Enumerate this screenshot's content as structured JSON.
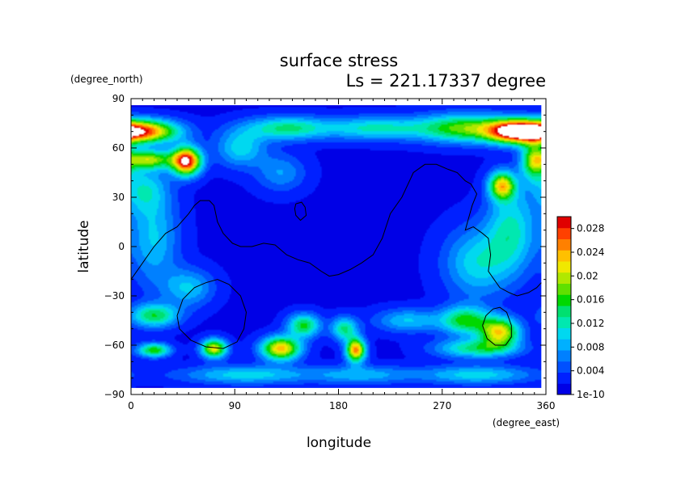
{
  "chart_data": {
    "type": "heatmap",
    "title": "surface stress",
    "subtitle": "Ls = 221.17337 degree",
    "xlabel": "longitude",
    "ylabel": "latitude",
    "x_unit": "(degree_east)",
    "y_unit": "(degree_north)",
    "xlim": [
      0,
      360
    ],
    "ylim": [
      -90,
      90
    ],
    "x_ticks": [
      0,
      90,
      180,
      270,
      360
    ],
    "y_ticks": [
      -90,
      -60,
      -30,
      0,
      30,
      60,
      90
    ],
    "grid": false,
    "data_extent": {
      "lon": [
        0,
        356
      ],
      "lat": [
        -86,
        86
      ]
    },
    "colorbar": {
      "placement": "right",
      "range": [
        0,
        0.03
      ],
      "labels": [
        {
          "value": 0.0,
          "text": "1e-10"
        },
        {
          "value": 0.004,
          "text": "0.004"
        },
        {
          "value": 0.008,
          "text": "0.008"
        },
        {
          "value": 0.012,
          "text": "0.012"
        },
        {
          "value": 0.016,
          "text": "0.016"
        },
        {
          "value": 0.02,
          "text": "0.02"
        },
        {
          "value": 0.024,
          "text": "0.024"
        },
        {
          "value": 0.028,
          "text": "0.028"
        }
      ],
      "colors": [
        "#0000e6",
        "#0020ff",
        "#0050ff",
        "#0080ff",
        "#00b0ff",
        "#00d8f0",
        "#00e8b0",
        "#00e070",
        "#00d800",
        "#60e000",
        "#b0e800",
        "#f0e800",
        "#ffc000",
        "#ff8000",
        "#ff4000",
        "#e00000"
      ]
    },
    "background_value": 0.0015,
    "features": [
      {
        "name": "northern-cap-west",
        "lon": 10,
        "lat": 70,
        "peak": 0.025,
        "sx": 22,
        "sy": 5
      },
      {
        "name": "northern-hotspot",
        "lon": 48,
        "lat": 52,
        "peak": 0.029,
        "sx": 9,
        "sy": 6
      },
      {
        "name": "northern-belt-west",
        "lon": 15,
        "lat": 53,
        "peak": 0.017,
        "sx": 15,
        "sy": 4
      },
      {
        "name": "northern-cap-east",
        "lon": 335,
        "lat": 70,
        "peak": 0.027,
        "sx": 18,
        "sy": 5
      },
      {
        "name": "northern-belt-east",
        "lon": 290,
        "lat": 72,
        "peak": 0.016,
        "sx": 30,
        "sy": 6
      },
      {
        "name": "northern-belt-mid",
        "lon": 135,
        "lat": 72,
        "peak": 0.012,
        "sx": 25,
        "sy": 5
      },
      {
        "name": "northern-belt-center",
        "lon": 210,
        "lat": 72,
        "peak": 0.01,
        "sx": 30,
        "sy": 5
      },
      {
        "name": "northern-belt-far-west",
        "lon": 95,
        "lat": 60,
        "peak": 0.009,
        "sx": 15,
        "sy": 8
      },
      {
        "name": "east-midlatitude",
        "lon": 322,
        "lat": 37,
        "peak": 0.02,
        "sx": 8,
        "sy": 6
      },
      {
        "name": "east-north",
        "lon": 350,
        "lat": 52,
        "peak": 0.016,
        "sx": 8,
        "sy": 8
      },
      {
        "name": "east-tropics",
        "lon": 330,
        "lat": 10,
        "peak": 0.01,
        "sx": 15,
        "sy": 18
      },
      {
        "name": "east-band",
        "lon": 300,
        "lat": -10,
        "peak": 0.009,
        "sx": 20,
        "sy": 15
      },
      {
        "name": "west-tropics",
        "lon": 20,
        "lat": 5,
        "peak": 0.008,
        "sx": 15,
        "sy": 20
      },
      {
        "name": "west-north",
        "lon": 10,
        "lat": 35,
        "peak": 0.008,
        "sx": 15,
        "sy": 10
      },
      {
        "name": "south-west-band",
        "lon": 20,
        "lat": -42,
        "peak": 0.013,
        "sx": 15,
        "sy": 5
      },
      {
        "name": "south-west-small",
        "lon": 20,
        "lat": -63,
        "peak": 0.015,
        "sx": 10,
        "sy": 3
      },
      {
        "name": "south-ring",
        "lon": 72,
        "lat": -62,
        "peak": 0.02,
        "sx": 8,
        "sy": 4
      },
      {
        "name": "south-streak-1",
        "lon": 130,
        "lat": -62,
        "peak": 0.022,
        "sx": 12,
        "sy": 5
      },
      {
        "name": "south-streak-2",
        "lon": 150,
        "lat": -48,
        "peak": 0.014,
        "sx": 10,
        "sy": 5
      },
      {
        "name": "south-hotspot",
        "lon": 195,
        "lat": -63,
        "peak": 0.024,
        "sx": 6,
        "sy": 5
      },
      {
        "name": "south-streak-3",
        "lon": 185,
        "lat": -50,
        "peak": 0.012,
        "sx": 8,
        "sy": 5
      },
      {
        "name": "south-east-hotspot",
        "lon": 320,
        "lat": -52,
        "peak": 0.02,
        "sx": 12,
        "sy": 6
      },
      {
        "name": "south-east-band",
        "lon": 290,
        "lat": -45,
        "peak": 0.014,
        "sx": 15,
        "sy": 6
      },
      {
        "name": "south-east-wide",
        "lon": 300,
        "lat": -62,
        "peak": 0.012,
        "sx": 25,
        "sy": 4
      },
      {
        "name": "south-center-band",
        "lon": 240,
        "lat": -45,
        "peak": 0.008,
        "sx": 20,
        "sy": 5
      },
      {
        "name": "southern-belt",
        "lon": 100,
        "lat": -78,
        "peak": 0.009,
        "sx": 40,
        "sy": 4
      },
      {
        "name": "southern-belt-east",
        "lon": 300,
        "lat": -78,
        "peak": 0.009,
        "sx": 35,
        "sy": 4
      },
      {
        "name": "southern-belt-center",
        "lon": 200,
        "lat": -78,
        "peak": 0.007,
        "sx": 30,
        "sy": 4
      },
      {
        "name": "west-mid-south",
        "lon": 50,
        "lat": -25,
        "peak": 0.008,
        "sx": 15,
        "sy": 8
      },
      {
        "name": "center-north",
        "lon": 130,
        "lat": 45,
        "peak": 0.006,
        "sx": 15,
        "sy": 8
      }
    ],
    "contours": [
      {
        "name": "continent-outline",
        "points": [
          [
            0,
            -20
          ],
          [
            10,
            -10
          ],
          [
            20,
            0
          ],
          [
            30,
            8
          ],
          [
            40,
            12
          ],
          [
            50,
            20
          ],
          [
            55,
            25
          ],
          [
            60,
            28
          ],
          [
            68,
            28
          ],
          [
            72,
            25
          ],
          [
            75,
            15
          ],
          [
            80,
            8
          ],
          [
            88,
            2
          ],
          [
            95,
            0
          ],
          [
            105,
            0
          ],
          [
            115,
            2
          ],
          [
            125,
            1
          ],
          [
            135,
            -5
          ],
          [
            145,
            -8
          ],
          [
            155,
            -10
          ],
          [
            165,
            -15
          ],
          [
            172,
            -18
          ],
          [
            180,
            -17
          ],
          [
            190,
            -14
          ],
          [
            200,
            -10
          ],
          [
            210,
            -5
          ],
          [
            218,
            5
          ],
          [
            225,
            20
          ],
          [
            235,
            30
          ],
          [
            245,
            45
          ],
          [
            255,
            50
          ],
          [
            265,
            50
          ],
          [
            275,
            47
          ],
          [
            283,
            45
          ],
          [
            290,
            40
          ],
          [
            295,
            38
          ],
          [
            300,
            32
          ],
          [
            296,
            25
          ],
          [
            292,
            15
          ],
          [
            290,
            10
          ],
          [
            297,
            12
          ],
          [
            305,
            8
          ],
          [
            310,
            5
          ],
          [
            312,
            -5
          ],
          [
            310,
            -15
          ],
          [
            315,
            -20
          ],
          [
            320,
            -25
          ],
          [
            328,
            -28
          ],
          [
            335,
            -30
          ],
          [
            345,
            -28
          ],
          [
            352,
            -25
          ],
          [
            356,
            -22
          ]
        ]
      },
      {
        "name": "small-island",
        "points": [
          [
            143,
            26
          ],
          [
            148,
            27
          ],
          [
            151,
            24
          ],
          [
            152,
            19
          ],
          [
            147,
            16
          ],
          [
            143,
            19
          ],
          [
            142,
            23
          ],
          [
            143,
            26
          ]
        ]
      },
      {
        "name": "southwest-crater",
        "points": [
          [
            42,
            -50
          ],
          [
            40,
            -42
          ],
          [
            45,
            -32
          ],
          [
            55,
            -25
          ],
          [
            65,
            -22
          ],
          [
            75,
            -20
          ],
          [
            85,
            -23
          ],
          [
            95,
            -30
          ],
          [
            100,
            -40
          ],
          [
            98,
            -50
          ],
          [
            92,
            -58
          ],
          [
            80,
            -62
          ],
          [
            65,
            -61
          ],
          [
            52,
            -57
          ],
          [
            42,
            -50
          ]
        ]
      },
      {
        "name": "southeast-crater",
        "points": [
          [
            305,
            -48
          ],
          [
            308,
            -42
          ],
          [
            314,
            -38
          ],
          [
            320,
            -37
          ],
          [
            326,
            -40
          ],
          [
            330,
            -48
          ],
          [
            330,
            -55
          ],
          [
            325,
            -60
          ],
          [
            316,
            -60
          ],
          [
            309,
            -56
          ],
          [
            305,
            -48
          ]
        ]
      }
    ]
  }
}
